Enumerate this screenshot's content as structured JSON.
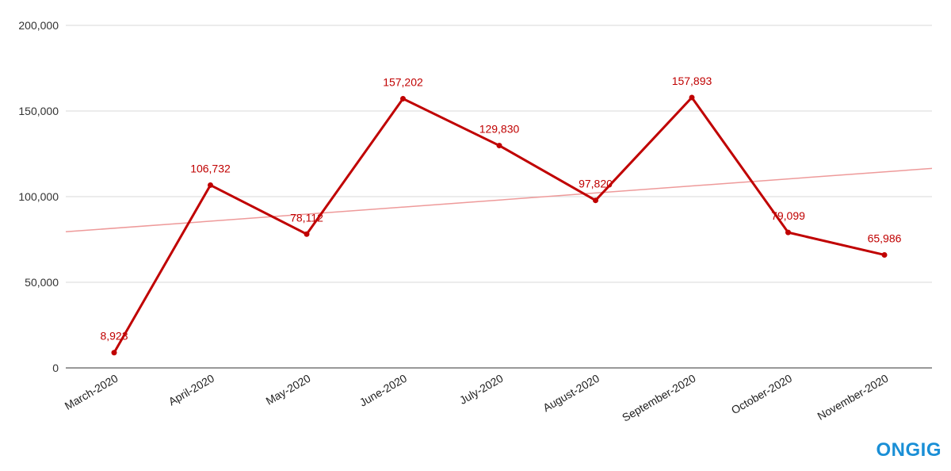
{
  "chart_data": {
    "type": "line",
    "title": "",
    "xlabel": "",
    "ylabel": "",
    "categories": [
      "March-2020",
      "April-2020",
      "May-2020",
      "June-2020",
      "July-2020",
      "August-2020",
      "September-2020",
      "October-2020",
      "November-2020"
    ],
    "series": [
      {
        "values": [
          8923,
          106732,
          78112,
          157202,
          129830,
          97820,
          157893,
          79099,
          65986
        ]
      }
    ],
    "data_labels": [
      "8,923",
      "106,732",
      "78,112",
      "157,202",
      "129,830",
      "97,820",
      "157,893",
      "79,099",
      "65,986"
    ],
    "ylim": [
      0,
      200000
    ],
    "yticks": [
      0,
      50000,
      100000,
      150000,
      200000
    ],
    "ytick_labels": [
      "0",
      "50,000",
      "100,000",
      "150,000",
      "200,000"
    ],
    "trendline": {
      "start": 79500,
      "end": 116500
    },
    "grid": true,
    "legend": "none",
    "colors": {
      "line": "#c00000",
      "trend": "#ee9a9a",
      "grid": "#d9d9d9",
      "axis": "#333333",
      "label": "#c00000"
    }
  },
  "logo": {
    "text": "ONGIG",
    "color": "#1a8fd6"
  }
}
